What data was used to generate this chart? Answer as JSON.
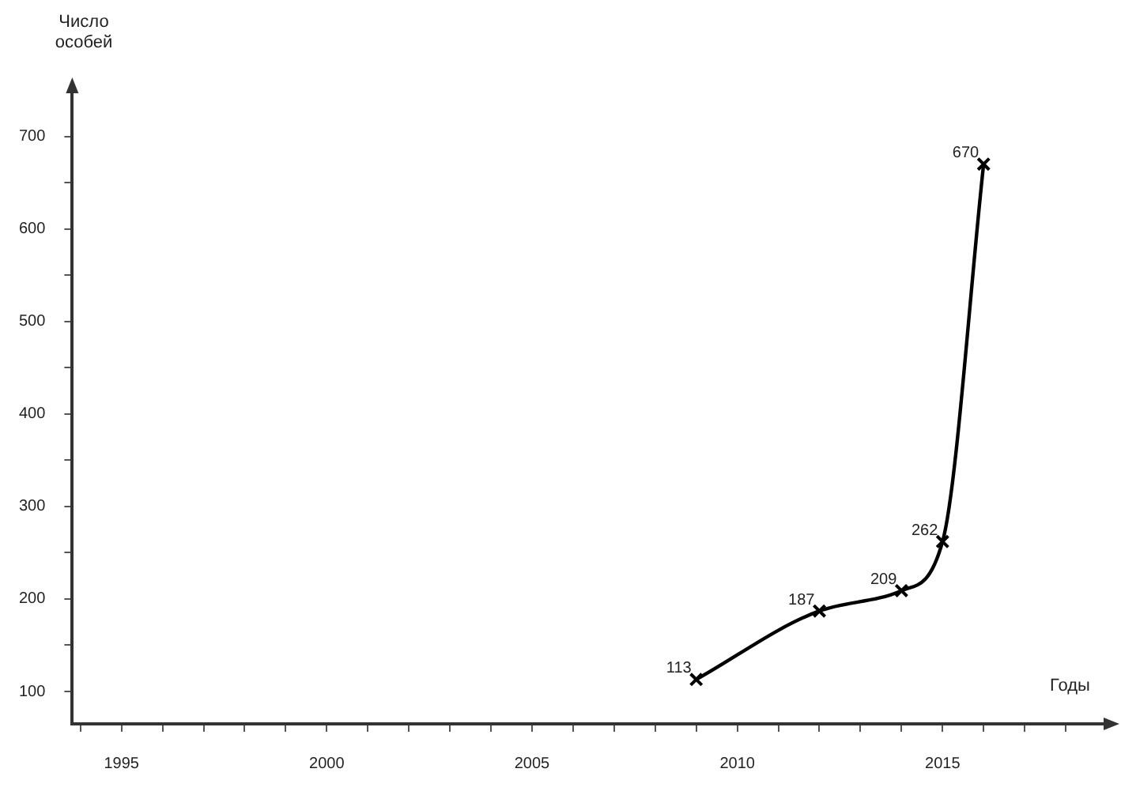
{
  "chart_data": {
    "type": "line",
    "xlabel": "Годы",
    "ylabel": "Число особей",
    "x": [
      2009,
      2012,
      2014,
      2015,
      2016
    ],
    "series": [
      {
        "color": "#000000",
        "values": [
          113,
          187,
          209,
          262,
          670
        ]
      }
    ],
    "xlim": [
      1993.8,
      2019
    ],
    "xticks": [
      {
        "value": 1994,
        "label": null
      },
      1995,
      {
        "value": 1996,
        "label": null
      },
      {
        "value": 1997,
        "label": null
      },
      {
        "value": 1998,
        "label": null
      },
      {
        "value": 1999,
        "label": null
      },
      2000,
      {
        "value": 2001,
        "label": null
      },
      {
        "value": 2002,
        "label": null
      },
      {
        "value": 2003,
        "label": null
      },
      {
        "value": 2004,
        "label": null
      },
      2005,
      {
        "value": 2006,
        "label": null
      },
      {
        "value": 2007,
        "label": null
      },
      {
        "value": 2008,
        "label": null
      },
      {
        "value": 2009,
        "label": null
      },
      2010,
      {
        "value": 2011,
        "label": null
      },
      {
        "value": 2012,
        "label": null
      },
      {
        "value": 2013,
        "label": null
      },
      {
        "value": 2014,
        "label": null
      },
      2015,
      {
        "value": 2016,
        "label": null
      },
      {
        "value": 2017,
        "label": null
      },
      {
        "value": 2018,
        "label": null
      }
    ],
    "ylim": [
      65,
      750
    ],
    "yticks": [
      100,
      {
        "value": 150,
        "label": null
      },
      200,
      {
        "value": 250,
        "label": null
      },
      300,
      {
        "value": 350,
        "label": null
      },
      400,
      {
        "value": 450,
        "label": null
      },
      500,
      {
        "value": 550,
        "label": null
      },
      600,
      {
        "value": 650,
        "label": null
      },
      700
    ],
    "marker": "cross",
    "line_style": "solid",
    "data_labels": true,
    "grid": false,
    "legend": false
  }
}
